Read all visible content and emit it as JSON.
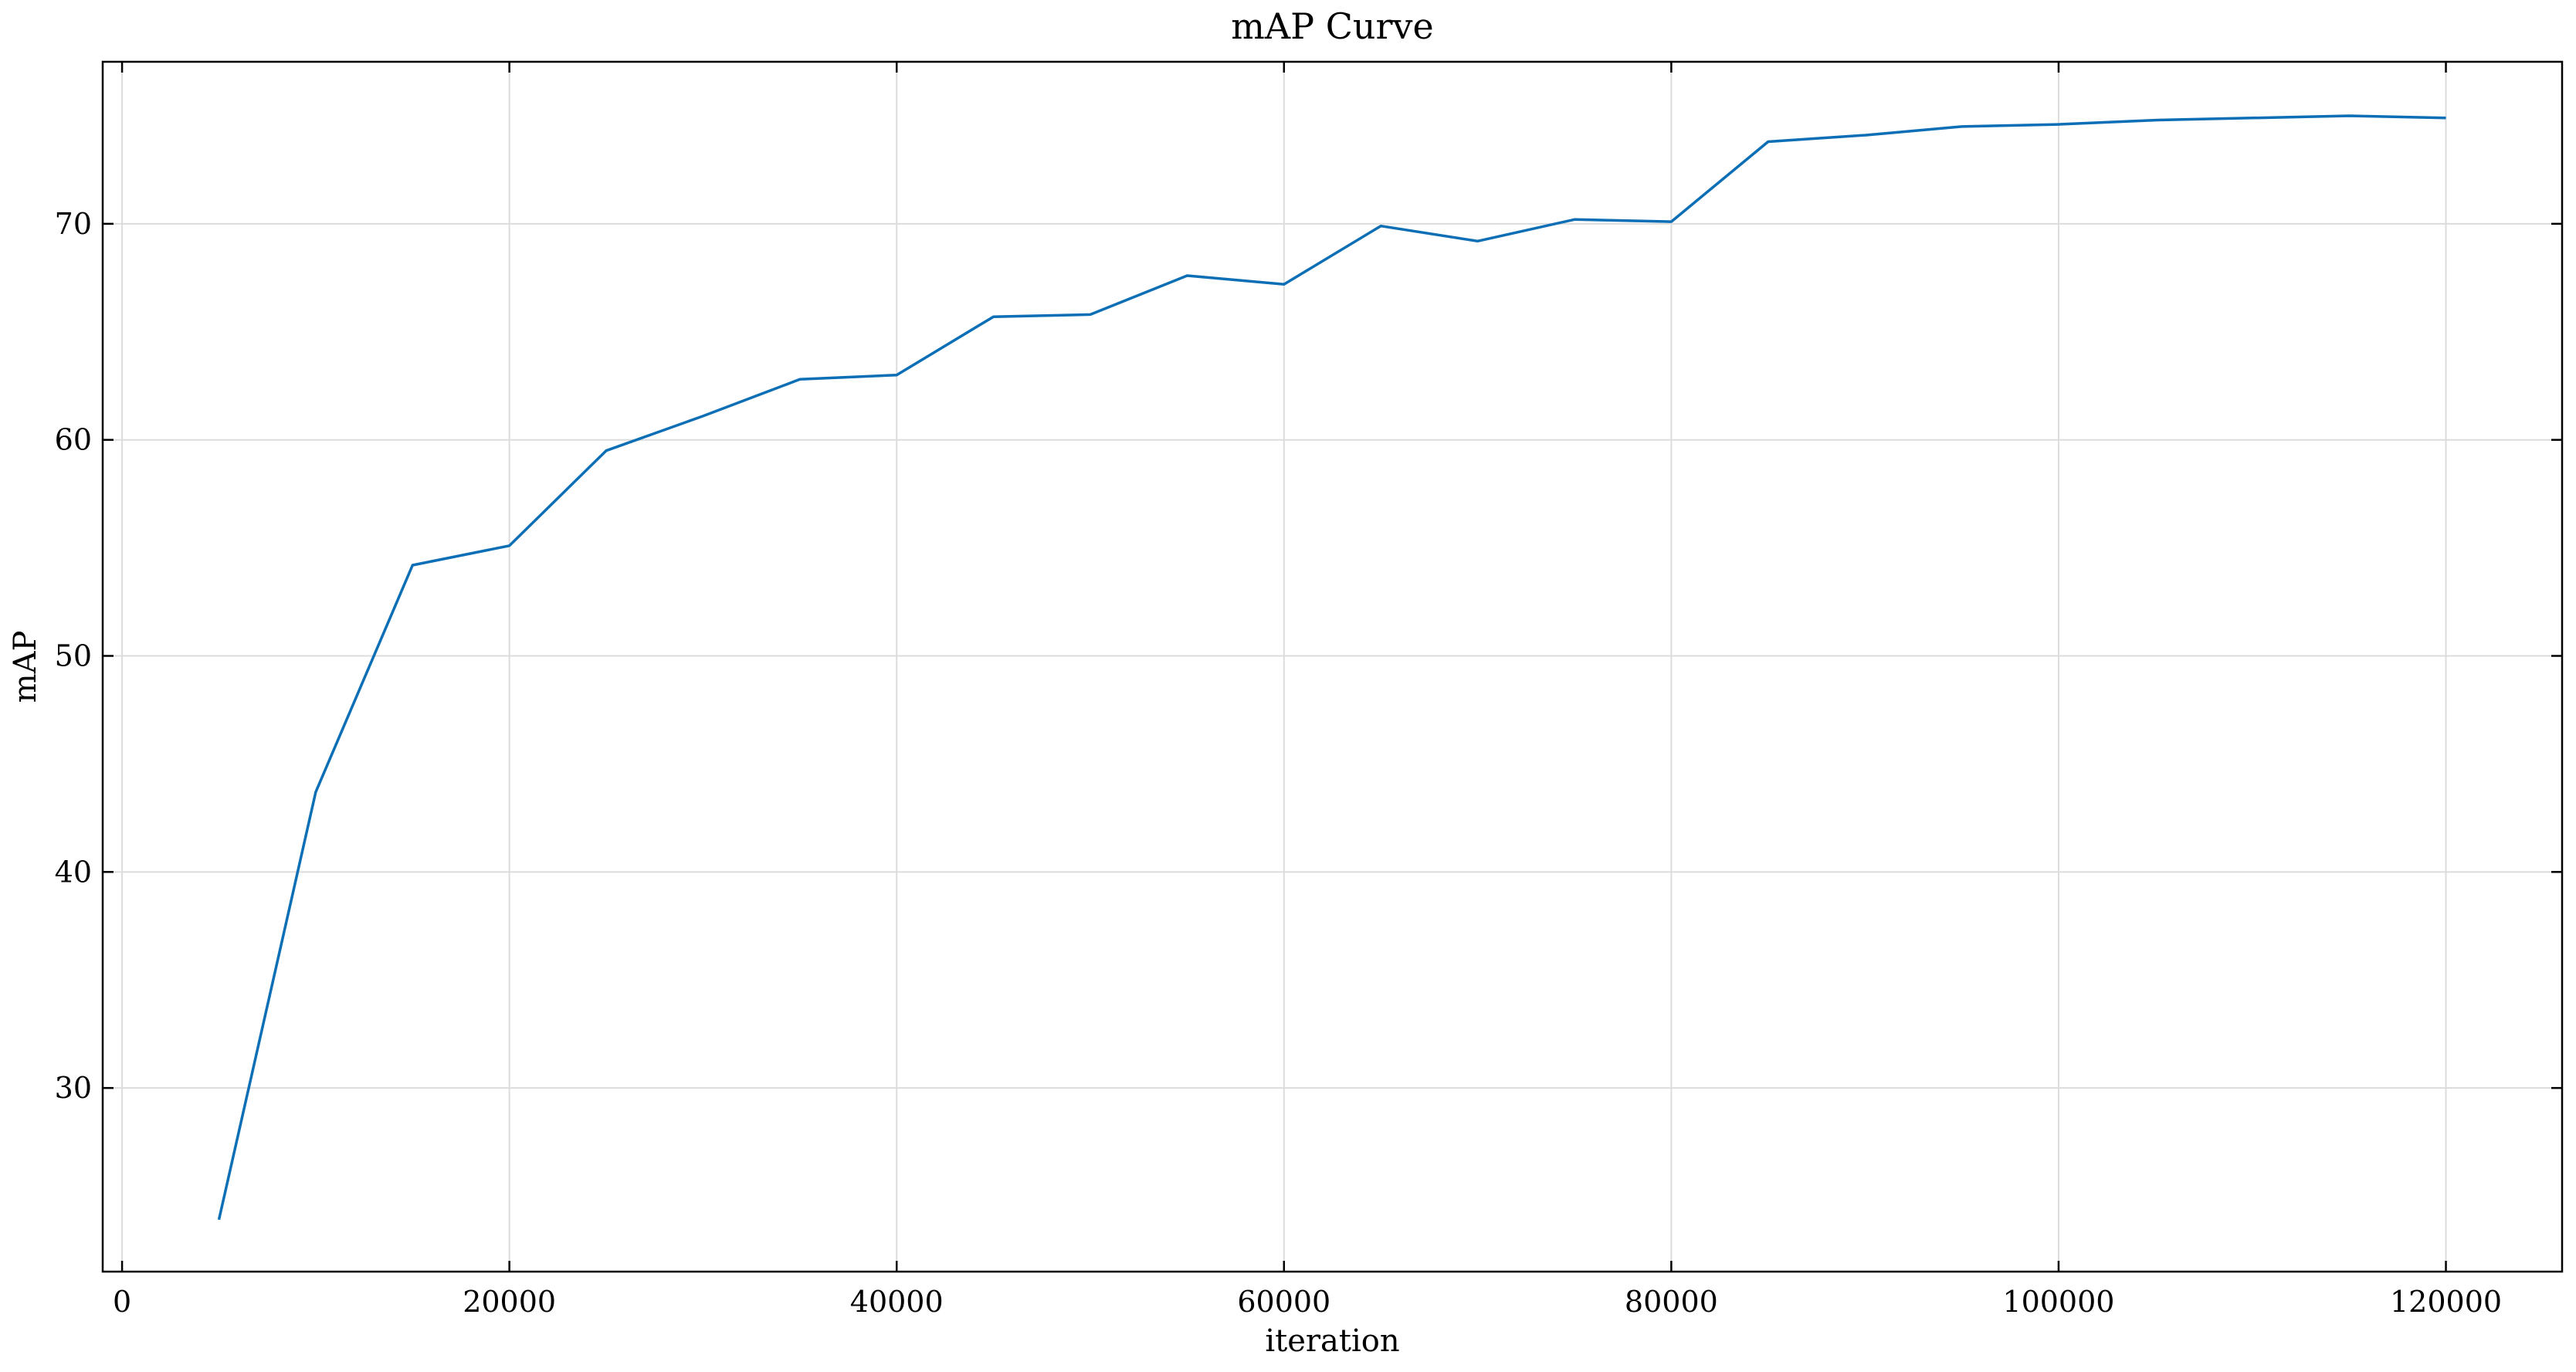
{
  "chart_data": {
    "type": "line",
    "title": "mAP Curve",
    "xlabel": "iteration",
    "ylabel": "mAP",
    "xlim": [
      -1000,
      126000
    ],
    "ylim": [
      21.5,
      77.5
    ],
    "xticks": [
      0,
      20000,
      40000,
      60000,
      80000,
      100000,
      120000
    ],
    "yticks": [
      30,
      40,
      50,
      60,
      70
    ],
    "grid": true,
    "series": [
      {
        "color": "#0C6FB5",
        "x": [
          5000,
          10000,
          15000,
          20000,
          25000,
          30000,
          35000,
          40000,
          45000,
          50000,
          55000,
          60000,
          65000,
          70000,
          75000,
          80000,
          85000,
          90000,
          95000,
          100000,
          105000,
          110000,
          115000,
          120000
        ],
        "y": [
          23.9,
          43.7,
          54.2,
          55.1,
          59.5,
          61.1,
          62.8,
          63.0,
          65.7,
          65.8,
          67.6,
          67.2,
          69.9,
          69.2,
          70.2,
          70.1,
          73.8,
          74.1,
          74.5,
          74.6,
          74.8,
          74.9,
          75.0,
          74.9
        ]
      }
    ]
  }
}
